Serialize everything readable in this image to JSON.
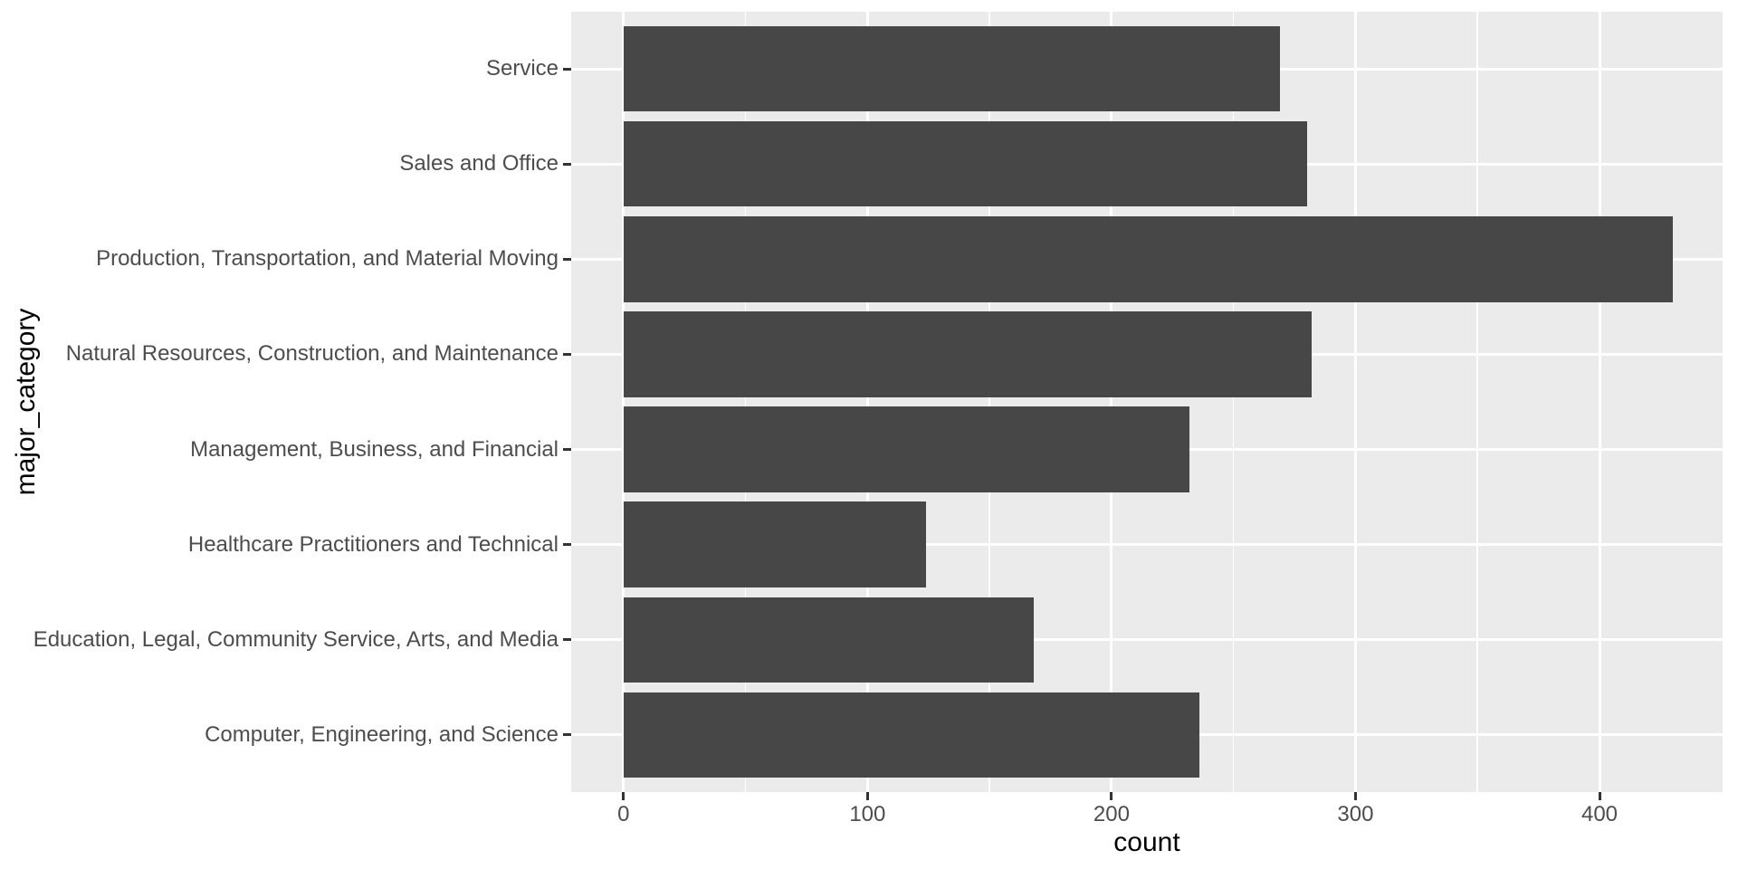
{
  "chart_data": {
    "type": "bar",
    "orientation": "horizontal",
    "title": "",
    "xlabel": "count",
    "ylabel": "major_category",
    "categories_top_to_bottom": [
      "Service",
      "Sales and Office",
      "Production, Transportation, and Material Moving",
      "Natural Resources, Construction, and Maintenance",
      "Management, Business, and Financial",
      "Healthcare Practitioners and Technical",
      "Education, Legal, Community Service, Arts, and Media",
      "Computer, Engineering, and Science"
    ],
    "values": [
      269,
      280,
      430,
      282,
      232,
      124,
      168,
      236
    ],
    "x_ticks": [
      0,
      100,
      200,
      300,
      400
    ],
    "x_minor_ticks": [
      50,
      150,
      250,
      350
    ],
    "xlim": [
      -21.45,
      450.45
    ],
    "bar_width_fraction": 0.9,
    "grid": true,
    "legend": false,
    "theme": "ggplot-gray"
  },
  "style": {
    "background": "#FFFFFF",
    "panel_background": "#EBEBEB",
    "grid_color": "#FFFFFF",
    "bar_fill": "#474747",
    "tick_mark_color": "#333333",
    "tick_label_color": "#4D4D4D",
    "axis_title_color": "#000000"
  }
}
